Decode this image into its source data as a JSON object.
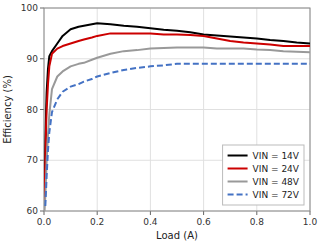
{
  "chart_data": {
    "type": "line",
    "xlabel": "Load (A)",
    "ylabel": "Efficiency (%)",
    "xlim": [
      0,
      1.0
    ],
    "ylim": [
      60,
      100
    ],
    "xticks": [
      {
        "value": 0,
        "label": "0.0"
      },
      0.2,
      0.4,
      0.6,
      0.8,
      {
        "value": 1.0,
        "label": "1.0"
      }
    ],
    "yticks": [
      60,
      70,
      80,
      90,
      100
    ],
    "grid": true,
    "legend": "lower right",
    "series": [
      {
        "name": "VIN = 14V",
        "color": "#000000",
        "line_style": "solid",
        "x": [
          0.002,
          0.005,
          0.008,
          0.01,
          0.015,
          0.02,
          0.03,
          0.05,
          0.07,
          0.1,
          0.13,
          0.15,
          0.18,
          0.2,
          0.25,
          0.3,
          0.35,
          0.4,
          0.45,
          0.5,
          0.55,
          0.6,
          0.65,
          0.7,
          0.75,
          0.8,
          0.85,
          0.9,
          0.95,
          1.0
        ],
        "values": [
          63.0,
          72.0,
          80.0,
          83.5,
          88.0,
          90.5,
          91.5,
          93.0,
          94.5,
          95.8,
          96.3,
          96.5,
          96.8,
          97.0,
          96.8,
          96.5,
          96.3,
          96.0,
          95.7,
          95.5,
          95.2,
          94.8,
          94.6,
          94.4,
          94.2,
          94.0,
          93.7,
          93.5,
          93.2,
          93.0
        ]
      },
      {
        "name": "VIN = 24V",
        "color": "#cc0000",
        "line_style": "solid",
        "x": [
          0.002,
          0.005,
          0.008,
          0.01,
          0.015,
          0.02,
          0.03,
          0.05,
          0.07,
          0.1,
          0.13,
          0.15,
          0.18,
          0.2,
          0.25,
          0.3,
          0.35,
          0.4,
          0.45,
          0.5,
          0.55,
          0.6,
          0.65,
          0.7,
          0.75,
          0.8,
          0.85,
          0.9,
          0.95,
          1.0
        ],
        "values": [
          62.0,
          70.0,
          77.0,
          80.0,
          85.0,
          88.5,
          91.0,
          92.0,
          92.5,
          93.0,
          93.5,
          93.8,
          94.2,
          94.5,
          95.0,
          95.0,
          95.0,
          95.0,
          94.8,
          94.8,
          94.7,
          94.5,
          94.0,
          93.5,
          93.2,
          93.0,
          92.8,
          92.5,
          92.5,
          92.5
        ]
      },
      {
        "name": "VIN = 48V",
        "color": "#999999",
        "line_style": "solid",
        "x": [
          0.002,
          0.005,
          0.008,
          0.01,
          0.015,
          0.02,
          0.03,
          0.05,
          0.07,
          0.1,
          0.13,
          0.15,
          0.18,
          0.2,
          0.25,
          0.3,
          0.35,
          0.4,
          0.45,
          0.5,
          0.55,
          0.6,
          0.65,
          0.7,
          0.75,
          0.8,
          0.85,
          0.9,
          0.95,
          1.0
        ],
        "values": [
          60.0,
          63.0,
          67.0,
          70.0,
          75.0,
          79.0,
          84.0,
          86.5,
          87.5,
          88.5,
          89.0,
          89.2,
          89.8,
          90.2,
          91.0,
          91.5,
          91.7,
          92.0,
          92.1,
          92.2,
          92.2,
          92.2,
          92.0,
          92.0,
          92.0,
          91.8,
          91.7,
          91.5,
          91.4,
          91.3
        ]
      },
      {
        "name": "VIN = 72V",
        "color": "#4472c4",
        "line_style": "dashed",
        "x": [
          0.005,
          0.008,
          0.01,
          0.015,
          0.02,
          0.03,
          0.05,
          0.07,
          0.1,
          0.13,
          0.15,
          0.18,
          0.2,
          0.25,
          0.3,
          0.35,
          0.4,
          0.45,
          0.5,
          0.55,
          0.6,
          0.65,
          0.7,
          0.75,
          0.8,
          0.85,
          0.9,
          0.95,
          1.0
        ],
        "values": [
          61.0,
          64.5,
          67.0,
          72.0,
          75.5,
          79.5,
          82.0,
          83.5,
          84.5,
          85.0,
          85.5,
          86.0,
          86.5,
          87.2,
          87.8,
          88.2,
          88.5,
          88.7,
          89.0,
          89.0,
          89.0,
          89.0,
          89.0,
          89.0,
          89.0,
          89.0,
          89.0,
          89.0,
          89.0
        ]
      }
    ]
  }
}
